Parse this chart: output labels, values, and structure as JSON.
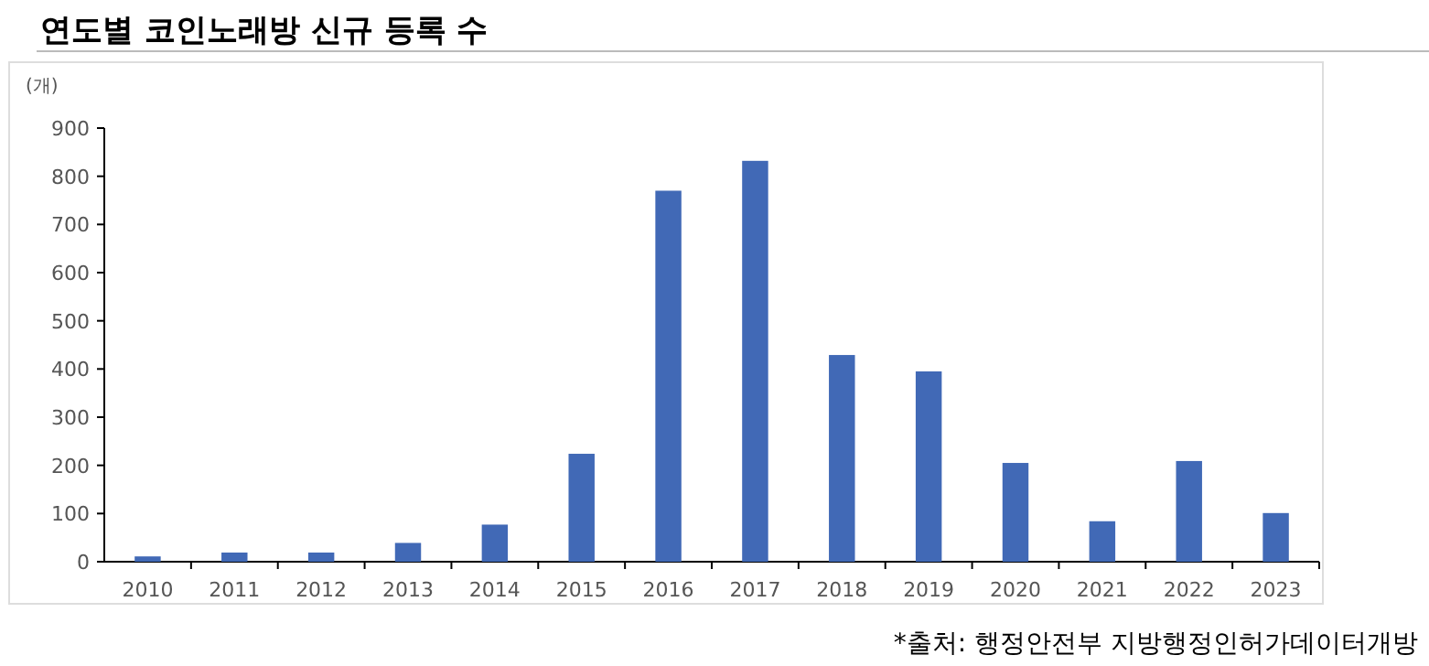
{
  "chart_data": {
    "type": "bar",
    "title": "연도별 코인노래방 신규 등록 수",
    "ylabel": "(개)",
    "categories": [
      "2010",
      "2011",
      "2012",
      "2013",
      "2014",
      "2015",
      "2016",
      "2017",
      "2018",
      "2019",
      "2020",
      "2021",
      "2022",
      "2023"
    ],
    "values": [
      11,
      19,
      19,
      39,
      77,
      224,
      770,
      832,
      429,
      395,
      205,
      84,
      209,
      101
    ],
    "color": "#4169b6",
    "ylim": [
      0,
      900
    ],
    "yticks": [
      0,
      100,
      200,
      300,
      400,
      500,
      600,
      700,
      800,
      900
    ],
    "grid": false,
    "annotations": [
      "*출처: 행정안전부 지방행정인허가데이터개방"
    ]
  }
}
